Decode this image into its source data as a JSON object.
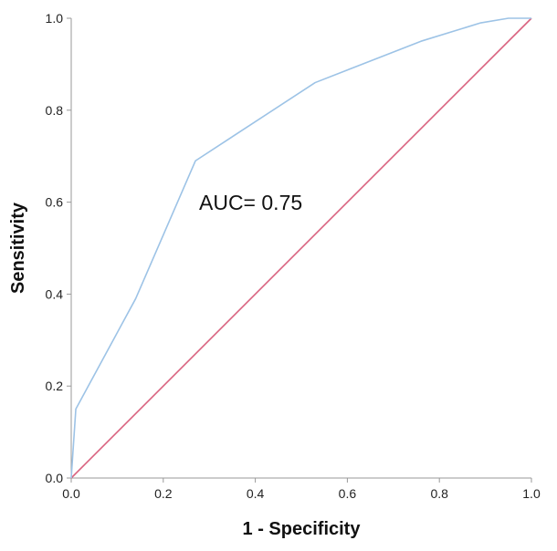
{
  "chart_data": {
    "type": "line",
    "xlabel": "1 - Specificity",
    "ylabel": "Sensitivity",
    "xlim": [
      0.0,
      1.0
    ],
    "ylim": [
      0.0,
      1.0
    ],
    "x_ticks": [
      "0.0",
      "0.2",
      "0.4",
      "0.6",
      "0.8",
      "1.0"
    ],
    "y_ticks": [
      "0.0",
      "0.2",
      "0.4",
      "0.6",
      "0.8",
      "1.0"
    ],
    "x_tick_values": [
      0.0,
      0.2,
      0.4,
      0.6,
      0.8,
      1.0
    ],
    "y_tick_values": [
      0.0,
      0.2,
      0.4,
      0.6,
      0.8,
      1.0
    ],
    "grid": false,
    "annotation": "AUC= 0.75",
    "series": [
      {
        "role": "roc-curve",
        "color": "#9dc3e6",
        "x": [
          0.0,
          0.01,
          0.14,
          0.27,
          0.53,
          0.76,
          0.89,
          0.95,
          1.0
        ],
        "y": [
          0.0,
          0.15,
          0.39,
          0.69,
          0.86,
          0.95,
          0.99,
          1.0,
          1.0
        ]
      },
      {
        "role": "reference-line",
        "color": "#d9627f",
        "x": [
          0.0,
          1.0
        ],
        "y": [
          0.0,
          1.0
        ]
      }
    ]
  }
}
